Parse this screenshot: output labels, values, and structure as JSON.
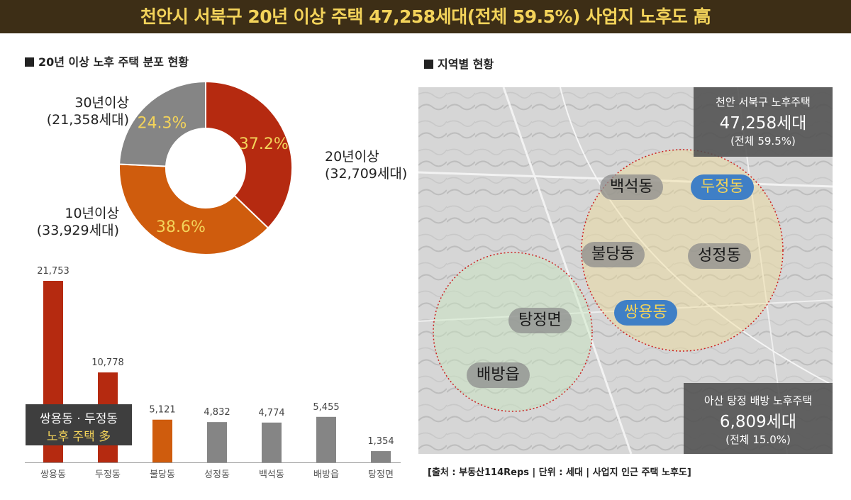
{
  "header": {
    "title": "천안시 서북구 20년 이상 주택 47,258세대(전체 59.5%) 사업지 노후도 高"
  },
  "left_title": "20년 이상 노후 주택 분포 현황",
  "right_title": "지역별 현황",
  "colors": {
    "red": "#b52a10",
    "orange": "#cf5c0d",
    "gray": "#858585",
    "yellow": "#f3d35a"
  },
  "donut": {
    "slices": [
      {
        "label": "20년이상",
        "count": "(32,709세대)",
        "percent_text": "37.2%",
        "value": 37.2,
        "color": "#b52a10"
      },
      {
        "label": "10년이상",
        "count": "(33,929세대)",
        "percent_text": "38.6%",
        "value": 38.6,
        "color": "#cf5c0d"
      },
      {
        "label": "30년이상",
        "count": "(21,358세대)",
        "percent_text": "24.3%",
        "value": 24.3,
        "color": "#858585"
      }
    ]
  },
  "chart_data": {
    "type": "bar",
    "categories": [
      "쌍용동",
      "두정동",
      "불당동",
      "성정동",
      "백석동",
      "배방읍",
      "탕정면"
    ],
    "values": [
      21753,
      10778,
      5121,
      4832,
      4774,
      5455,
      1354
    ],
    "value_labels": [
      "21,753",
      "10,778",
      "5,121",
      "4,832",
      "4,774",
      "5,455",
      "1,354"
    ],
    "bar_colors": [
      "#b52a10",
      "#b52a10",
      "#cf5c0d",
      "#858585",
      "#858585",
      "#858585",
      "#858585"
    ],
    "ylim": [
      0,
      21753
    ]
  },
  "callout": {
    "line1": "쌍용동 · 두정동",
    "line2": "노후 주택 多"
  },
  "map": {
    "chips": [
      {
        "name": "백석동",
        "highlight": false
      },
      {
        "name": "두정동",
        "highlight": true
      },
      {
        "name": "불당동",
        "highlight": false
      },
      {
        "name": "성정동",
        "highlight": false
      },
      {
        "name": "쌍용동",
        "highlight": true
      },
      {
        "name": "탕정면",
        "highlight": false
      },
      {
        "name": "배방읍",
        "highlight": false
      }
    ],
    "box_top": {
      "line1": "천안 서북구 노후주택",
      "line2": "47,258세대",
      "line3": "(전체 59.5%)"
    },
    "box_bottom": {
      "line1": "아산 탕정 배방 노후주택",
      "line2": "6,809세대",
      "line3": "(전체 15.0%)"
    }
  },
  "source": "[출처 : 부동산114Reps | 단위 : 세대 | 사업지 인근 주택 노후도]"
}
